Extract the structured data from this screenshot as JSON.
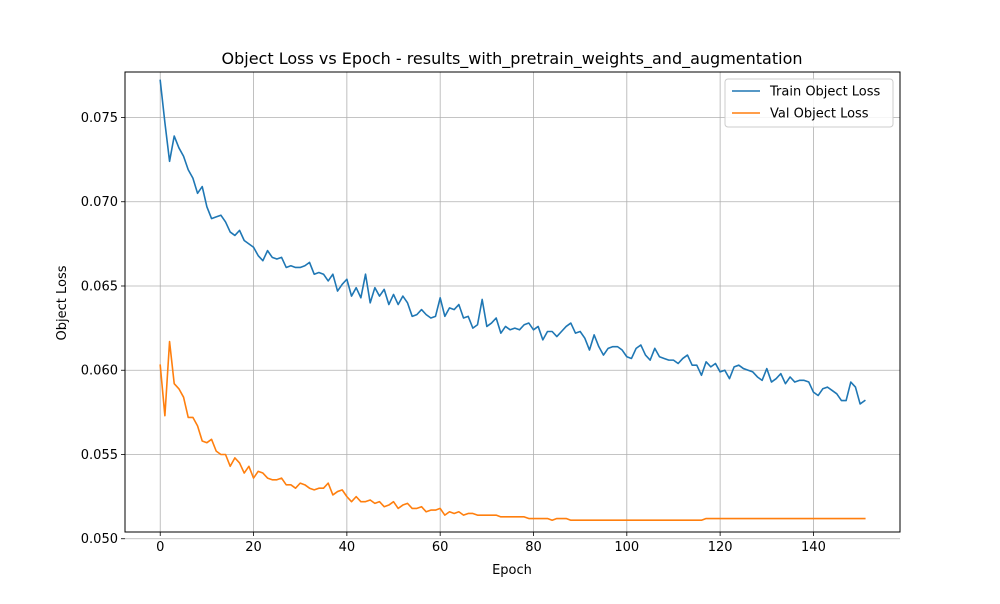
{
  "chart_data": {
    "type": "line",
    "title": "Object Loss vs Epoch - results_with_pretrain_weights_and_augmentation",
    "xlabel": "Epoch",
    "ylabel": "Object Loss",
    "xlim": [
      -7.55,
      158.55
    ],
    "ylim": [
      0.0504,
      0.0777
    ],
    "xticks": [
      0,
      20,
      40,
      60,
      80,
      100,
      120,
      140
    ],
    "yticks": [
      0.05,
      0.055,
      0.06,
      0.065,
      0.07,
      0.075
    ],
    "ytick_labels": [
      "0.050",
      "0.055",
      "0.060",
      "0.065",
      "0.070",
      "0.075"
    ],
    "grid": true,
    "legend_position": "upper right",
    "series": [
      {
        "name": "Train Object Loss",
        "color": "#1f77b4",
        "values": [
          0.0772,
          0.0747,
          0.0724,
          0.0739,
          0.0732,
          0.0727,
          0.0719,
          0.0714,
          0.0705,
          0.0709,
          0.0697,
          0.069,
          0.0691,
          0.0692,
          0.0688,
          0.0682,
          0.068,
          0.0683,
          0.0677,
          0.0675,
          0.0673,
          0.0668,
          0.0665,
          0.0671,
          0.0667,
          0.0666,
          0.0667,
          0.0661,
          0.0662,
          0.0661,
          0.0661,
          0.0662,
          0.0664,
          0.0657,
          0.0658,
          0.0657,
          0.0653,
          0.0657,
          0.0647,
          0.0651,
          0.0654,
          0.0644,
          0.0649,
          0.0643,
          0.0657,
          0.064,
          0.0649,
          0.0644,
          0.0648,
          0.0639,
          0.0645,
          0.0639,
          0.0644,
          0.064,
          0.0632,
          0.0633,
          0.0636,
          0.0633,
          0.0631,
          0.0632,
          0.0643,
          0.0632,
          0.0637,
          0.0636,
          0.0639,
          0.0631,
          0.0632,
          0.0625,
          0.0627,
          0.0642,
          0.0626,
          0.0628,
          0.0631,
          0.0622,
          0.0626,
          0.0624,
          0.0625,
          0.0624,
          0.0627,
          0.0628,
          0.0624,
          0.0626,
          0.0618,
          0.0623,
          0.0623,
          0.062,
          0.0623,
          0.0626,
          0.0628,
          0.0622,
          0.0623,
          0.0619,
          0.0612,
          0.0621,
          0.0614,
          0.0609,
          0.0613,
          0.0614,
          0.0614,
          0.0612,
          0.0608,
          0.0607,
          0.0613,
          0.0615,
          0.0609,
          0.0606,
          0.0613,
          0.0608,
          0.0607,
          0.0606,
          0.0606,
          0.0604,
          0.0607,
          0.0609,
          0.0603,
          0.0603,
          0.0597,
          0.0605,
          0.0602,
          0.0604,
          0.0599,
          0.06,
          0.0595,
          0.0602,
          0.0603,
          0.0601,
          0.06,
          0.0599,
          0.0596,
          0.0594,
          0.0601,
          0.0593,
          0.0595,
          0.0598,
          0.0592,
          0.0596,
          0.0593,
          0.0594,
          0.0594,
          0.0593,
          0.0587,
          0.0585,
          0.0589,
          0.059,
          0.0588,
          0.0586,
          0.0582,
          0.0582,
          0.0593,
          0.059,
          0.058,
          0.0582
        ]
      },
      {
        "name": "Val Object Loss",
        "color": "#ff7f0e",
        "values": [
          0.0603,
          0.0573,
          0.0617,
          0.0592,
          0.0589,
          0.0584,
          0.0572,
          0.0572,
          0.0567,
          0.0558,
          0.0557,
          0.0559,
          0.0552,
          0.055,
          0.055,
          0.0543,
          0.0548,
          0.0545,
          0.0539,
          0.0543,
          0.0536,
          0.054,
          0.0539,
          0.0536,
          0.0535,
          0.0535,
          0.0536,
          0.0532,
          0.0532,
          0.053,
          0.0533,
          0.0532,
          0.053,
          0.0529,
          0.053,
          0.053,
          0.0533,
          0.0526,
          0.0528,
          0.0529,
          0.0525,
          0.0522,
          0.0525,
          0.0522,
          0.0522,
          0.0523,
          0.0521,
          0.0522,
          0.0519,
          0.052,
          0.0522,
          0.0518,
          0.052,
          0.0521,
          0.0518,
          0.0518,
          0.0519,
          0.0516,
          0.0517,
          0.0517,
          0.0518,
          0.0514,
          0.0516,
          0.0515,
          0.0516,
          0.0514,
          0.0515,
          0.0515,
          0.0514,
          0.0514,
          0.0514,
          0.0514,
          0.0514,
          0.0513,
          0.0513,
          0.0513,
          0.0513,
          0.0513,
          0.0513,
          0.0512,
          0.0512,
          0.0512,
          0.0512,
          0.0512,
          0.0511,
          0.0512,
          0.0512,
          0.0512,
          0.0511,
          0.0511,
          0.0511,
          0.0511,
          0.0511,
          0.0511,
          0.0511,
          0.0511,
          0.0511,
          0.0511,
          0.0511,
          0.0511,
          0.0511,
          0.0511,
          0.0511,
          0.0511,
          0.0511,
          0.0511,
          0.0511,
          0.0511,
          0.0511,
          0.0511,
          0.0511,
          0.0511,
          0.0511,
          0.0511,
          0.0511,
          0.0511,
          0.0511,
          0.0512,
          0.0512,
          0.0512,
          0.0512,
          0.0512,
          0.0512,
          0.0512,
          0.0512,
          0.0512,
          0.0512,
          0.0512,
          0.0512,
          0.0512,
          0.0512,
          0.0512,
          0.0512,
          0.0512,
          0.0512,
          0.0512,
          0.0512,
          0.0512,
          0.0512,
          0.0512,
          0.0512,
          0.0512,
          0.0512,
          0.0512,
          0.0512,
          0.0512,
          0.0512,
          0.0512,
          0.0512,
          0.0512,
          0.0512,
          0.0512
        ]
      }
    ]
  }
}
